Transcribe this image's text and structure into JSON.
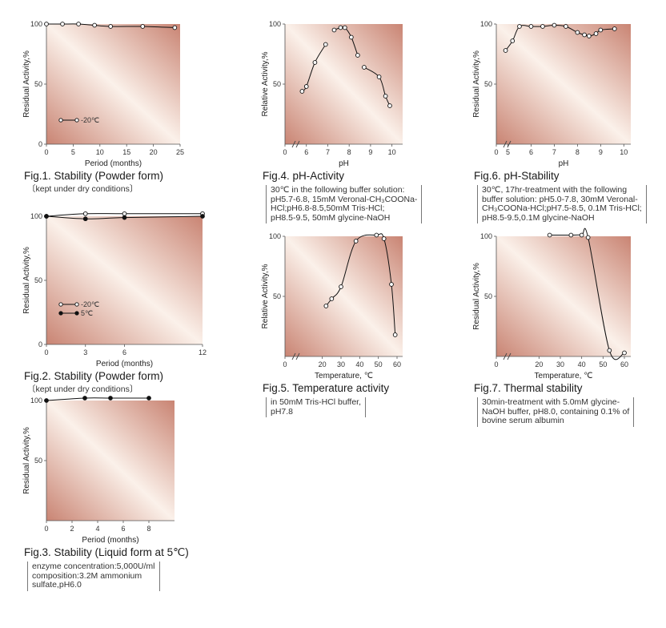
{
  "colors": {
    "grad_light": "#fbf1ea",
    "grad_dark": "#c98473",
    "line": "#111111"
  },
  "chart_data": [
    {
      "id": "fig1",
      "type": "line",
      "title": "Fig.1. Stability (Powder form)",
      "note": "〔kept under dry conditions〕",
      "xlabel": "Period (months)",
      "ylabel": "Residual Activity,%",
      "xlim": [
        0,
        25
      ],
      "ylim": [
        0,
        100
      ],
      "xticks": [
        "0",
        "5",
        "10",
        "15",
        "20",
        "25"
      ],
      "xtick_values": [
        0,
        5,
        10,
        15,
        20,
        25
      ],
      "yticks": [
        "0",
        "50",
        "100"
      ],
      "ytick_values": [
        0,
        50,
        100
      ],
      "series": [
        {
          "name": "-20℃",
          "marker": "open",
          "x": [
            0,
            3,
            6,
            9,
            12,
            18,
            24
          ],
          "y": [
            100,
            100,
            100,
            99,
            98,
            98,
            97
          ]
        }
      ]
    },
    {
      "id": "fig2",
      "type": "line",
      "title": "Fig.2. Stability (Powder form)",
      "note": "〔kept under dry conditions〕",
      "xlabel": "Period (months)",
      "ylabel": "Residual Activity,%",
      "xlim": [
        0,
        12
      ],
      "ylim": [
        0,
        100
      ],
      "xticks": [
        "0",
        "3",
        "6",
        "12"
      ],
      "xtick_values": [
        0,
        3,
        6,
        12
      ],
      "yticks": [
        "0",
        "50",
        "100"
      ],
      "ytick_values": [
        0,
        50,
        100
      ],
      "series": [
        {
          "name": "-20℃",
          "marker": "open",
          "x": [
            0,
            3,
            6,
            12
          ],
          "y": [
            100,
            102,
            102,
            102
          ]
        },
        {
          "name": "5℃",
          "marker": "filled",
          "x": [
            0,
            3,
            6,
            12
          ],
          "y": [
            100,
            98,
            99,
            100
          ]
        }
      ]
    },
    {
      "id": "fig3",
      "type": "line",
      "title": "Fig.3. Stability (Liquid form at 5℃)",
      "note": "enzyme concentration:5,000U/ml\ncomposition:3.2M ammonium\nsulfate,pH6.0",
      "xlabel": "Period (months)",
      "ylabel": "Residual Activity,%",
      "xlim": [
        0,
        10
      ],
      "ylim": [
        0,
        100
      ],
      "xticks": [
        "0",
        "2",
        "4",
        "6",
        "8"
      ],
      "xtick_values": [
        0,
        2,
        4,
        6,
        8
      ],
      "yticks": [
        "50",
        "100"
      ],
      "ytick_values": [
        50,
        100
      ],
      "series": [
        {
          "name": "",
          "marker": "filled",
          "x": [
            0,
            3,
            5,
            8
          ],
          "y": [
            100,
            102,
            102,
            102
          ]
        }
      ]
    },
    {
      "id": "fig4",
      "type": "line",
      "title": "Fig.4. pH-Activity",
      "note": "30℃ in the following buffer solution:\npH5.7-6.8, 15mM Veronal-CH₃COONa-\nHCl;pH6.8-8.5,50mM Tris-HCl;\npH8.5-9.5, 50mM glycine-NaOH",
      "xlabel": "pH",
      "ylabel": "Relative Activity,%",
      "xlim": [
        5,
        10.5
      ],
      "ylim": [
        0,
        100
      ],
      "xticks": [
        "0",
        "6",
        "7",
        "8",
        "9",
        "10"
      ],
      "xtick_values": [
        4.3,
        6,
        7,
        8,
        9,
        10
      ],
      "yticks": [
        "50",
        "100"
      ],
      "ytick_values": [
        50,
        100
      ],
      "series": [
        {
          "name": "pH5.7-6.8",
          "marker": "open",
          "x": [
            5.8,
            6.0,
            6.4,
            6.9
          ],
          "y": [
            44,
            48,
            68,
            83
          ]
        },
        {
          "name": "pH6.8-8.5",
          "marker": "open",
          "x": [
            7.3,
            7.6,
            7.8,
            8.1,
            8.4
          ],
          "y": [
            95,
            97,
            97,
            89,
            74
          ]
        },
        {
          "name": "pH8.5-9.5",
          "marker": "open",
          "x": [
            8.7,
            9.4,
            9.7,
            9.9
          ],
          "y": [
            64,
            56,
            40,
            32
          ]
        }
      ]
    },
    {
      "id": "fig5",
      "type": "line",
      "title": "Fig.5. Temperature activity",
      "note": "in 50mM Tris-HCl buffer,\npH7.8",
      "xlabel": "Temperature, ℃",
      "ylabel": "Relative Activity,%",
      "xlim": [
        0,
        63
      ],
      "ylim": [
        0,
        100
      ],
      "xticks": [
        "0",
        "20",
        "30",
        "40",
        "50",
        "60"
      ],
      "xtick_values": [
        0,
        20,
        30,
        40,
        50,
        60
      ],
      "yticks": [
        "50",
        "100"
      ],
      "ytick_values": [
        50,
        100
      ],
      "series": [
        {
          "name": "",
          "marker": "open",
          "x": [
            22,
            25,
            30,
            38,
            49,
            53,
            57,
            59
          ],
          "y": [
            42,
            48,
            58,
            96,
            101,
            98,
            60,
            18
          ]
        }
      ]
    },
    {
      "id": "fig6",
      "type": "line",
      "title": "Fig.6. pH-Stability",
      "note": "30℃, 17hr-treatment with the following\nbuffer solution: pH5.0-7.8, 30mM Veronal-\nCH₃COONa-HCl;pH7.5-8.5, 0.1M Tris-HCl;\npH8.5-9.5,0.1M glycine-NaOH",
      "xlabel": "pH",
      "ylabel": "Residual Activity,%",
      "xlim": [
        4.5,
        10.3
      ],
      "ylim": [
        0,
        100
      ],
      "xticks": [
        "0",
        "5",
        "6",
        "7",
        "8",
        "9",
        "10"
      ],
      "xtick_values": [
        3.8,
        5,
        6,
        7,
        8,
        9,
        10
      ],
      "yticks": [
        "50",
        "100"
      ],
      "ytick_values": [
        50,
        100
      ],
      "series": [
        {
          "name": "",
          "marker": "open",
          "x": [
            4.9,
            5.2,
            5.5,
            6.0,
            6.5,
            7.0,
            7.5,
            8.0,
            8.3,
            8.5,
            8.8,
            9.0,
            9.6
          ],
          "y": [
            78,
            86,
            98,
            98,
            98,
            99,
            98,
            93,
            91,
            90,
            92,
            95,
            96
          ]
        }
      ]
    },
    {
      "id": "fig7",
      "type": "line",
      "title": "Fig.7. Thermal stability",
      "note": "30min-treatment with 5.0mM glycine-\nNaOH buffer, pH8.0, containing 0.1% of\nbovine serum albumin",
      "xlabel": "Temperature, ℃",
      "ylabel": "Residual Activity,%",
      "xlim": [
        0,
        63
      ],
      "ylim": [
        0,
        100
      ],
      "xticks": [
        "0",
        "20",
        "30",
        "40",
        "50",
        "60"
      ],
      "xtick_values": [
        0,
        20,
        30,
        40,
        50,
        60
      ],
      "yticks": [
        "50",
        "100"
      ],
      "ytick_values": [
        50,
        100
      ],
      "series": [
        {
          "name": "",
          "marker": "open",
          "x": [
            25,
            35,
            40,
            43,
            53,
            60
          ],
          "y": [
            101,
            101,
            101,
            99,
            5,
            3
          ]
        }
      ]
    }
  ]
}
